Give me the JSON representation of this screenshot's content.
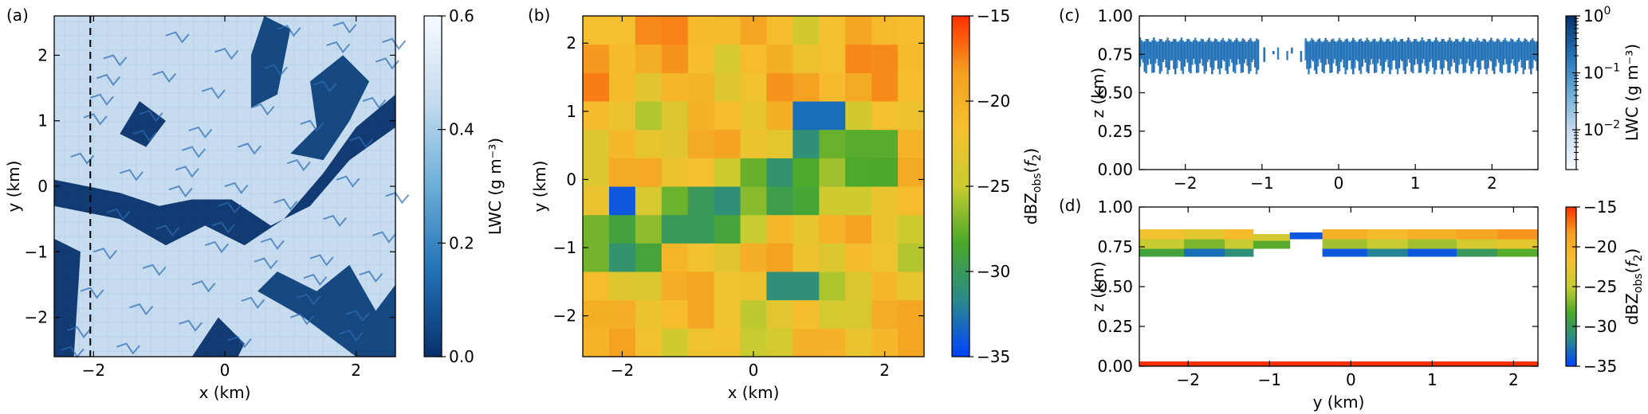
{
  "chart_data": [
    {
      "panel": "(a)",
      "type": "heatmap",
      "xlabel": "x (km)",
      "ylabel": "y (km)",
      "xlim": [
        -2.6,
        2.6
      ],
      "ylim": [
        -2.6,
        2.6
      ],
      "xticks": [
        -2,
        0,
        2
      ],
      "yticks": [
        -2,
        -1,
        0,
        1,
        2
      ],
      "grid": false,
      "vline_dashed_x": -2.05,
      "colorbar": {
        "label": "LWC (g m⁻³)",
        "range": [
          0.0,
          0.6
        ],
        "ticks": [
          0.0,
          0.2,
          0.4,
          0.6
        ],
        "tick_labels": [
          "0.0",
          "0.2",
          "0.4",
          "0.6"
        ],
        "colors": [
          "#08306b",
          "#2171b5",
          "#6baed6",
          "#c6dbef",
          "#f7fbff"
        ]
      }
    },
    {
      "panel": "(b)",
      "type": "heatmap",
      "xlabel": "x (km)",
      "ylabel": "y (km)",
      "xlim": [
        -2.6,
        2.6
      ],
      "ylim": [
        -2.6,
        2.4
      ],
      "xticks": [
        -2,
        0,
        2
      ],
      "yticks": [
        -2,
        -1,
        0,
        1,
        2
      ],
      "grid_cells": {
        "nx": 13,
        "ny": 12,
        "x0": -2.6,
        "x1": 2.6,
        "y0": -2.6,
        "y1": 2.4
      },
      "base_value": -22,
      "anomalies": [
        {
          "x": -2.0,
          "y": -0.4,
          "v": -34
        },
        {
          "x": -1.0,
          "y": -0.6,
          "v": -30
        },
        {
          "x": -0.4,
          "y": -0.4,
          "v": -31
        },
        {
          "x": 0.5,
          "y": -1.6,
          "v": -31
        },
        {
          "x": 1.1,
          "y": 0.9,
          "v": -33
        },
        {
          "x": 0.8,
          "y": 0.5,
          "v": -31
        },
        {
          "x": 1.7,
          "y": 0.6,
          "v": -28
        }
      ],
      "colorbar": {
        "label": "dBZ",
        "label_sub": "obs",
        "label_arg": "f",
        "label_arg_sub": "2",
        "range": [
          -35,
          -15
        ],
        "ticks": [
          -35,
          -30,
          -25,
          -20,
          -15
        ],
        "tick_labels": [
          "-35",
          "-30",
          "-25",
          "-20",
          "-15"
        ],
        "colors": [
          "#0043ff",
          "#2a8a8a",
          "#4aa82a",
          "#c8cc30",
          "#f5c030",
          "#f4a020",
          "#ff3000"
        ]
      }
    },
    {
      "panel": "(c)",
      "type": "heatmap",
      "xlabel": "",
      "ylabel": "z (km)",
      "xlim": [
        -2.6,
        2.6
      ],
      "ylim": [
        0.0,
        1.0
      ],
      "xticks": [
        -2,
        -1,
        0,
        1,
        2
      ],
      "yticks": [
        0.0,
        0.25,
        0.5,
        0.75,
        1.0
      ],
      "ytick_labels": [
        "0.00",
        "0.25",
        "0.50",
        "0.75",
        "1.00"
      ],
      "cloud": {
        "top_km": 0.86,
        "base_km_range": [
          0.62,
          0.72
        ],
        "gap_x_km": [
          -1.05,
          -0.45
        ]
      },
      "colorbar": {
        "label": "LWC (g m⁻³)",
        "scale": "log",
        "range": [
          0.002,
          1
        ],
        "ticks": [
          0.01,
          0.1,
          1
        ],
        "tick_labels": [
          {
            "base": "10",
            "exp": "-2"
          },
          {
            "base": "10",
            "exp": "-1"
          },
          {
            "base": "10",
            "exp": "0"
          }
        ],
        "colors": [
          "#f7fbff",
          "#c6dbef",
          "#6baed6",
          "#2171b5",
          "#08306b"
        ]
      }
    },
    {
      "panel": "(d)",
      "type": "heatmap",
      "xlabel": "y (km)",
      "ylabel": "z (km)",
      "xlim": [
        -2.6,
        2.3
      ],
      "ylim": [
        0.0,
        1.0
      ],
      "xticks": [
        -2,
        -1,
        0,
        1,
        2
      ],
      "yticks": [
        0.0,
        0.25,
        0.5,
        0.75,
        1.0
      ],
      "ytick_labels": [
        "0.00",
        "0.25",
        "0.50",
        "0.75",
        "1.00"
      ],
      "column_edges": [
        -2.6,
        -2.05,
        -1.55,
        -1.2,
        -0.75,
        -0.35,
        0.2,
        0.7,
        1.3,
        1.8,
        2.3
      ],
      "row_edges": [
        0.69,
        0.74,
        0.8,
        0.86
      ],
      "cells": [
        [
          -29,
          -25,
          -22
        ],
        [
          -33,
          -27,
          -23
        ],
        [
          -31,
          -25,
          -21
        ],
        [
          null,
          -28,
          -24
        ],
        [
          null,
          -34,
          null
        ],
        [
          -34,
          -26,
          -20
        ],
        [
          -32,
          -25,
          -21
        ],
        [
          -34,
          -26,
          -20
        ],
        [
          -30,
          -24,
          -19
        ],
        [
          -28,
          -23,
          -18
        ]
      ],
      "surface_value": -15,
      "colorbar": {
        "label": "dBZ",
        "label_sub": "obs",
        "label_arg": "f",
        "label_arg_sub": "2",
        "range": [
          -35,
          -15
        ],
        "ticks": [
          -35,
          -30,
          -25,
          -20,
          -15
        ],
        "tick_labels": [
          "-35",
          "-30",
          "-25",
          "-20",
          "-15"
        ],
        "colors": [
          "#0043ff",
          "#2a8a8a",
          "#4aa82a",
          "#c8cc30",
          "#f5c030",
          "#f4a020",
          "#ff3000"
        ]
      }
    }
  ]
}
